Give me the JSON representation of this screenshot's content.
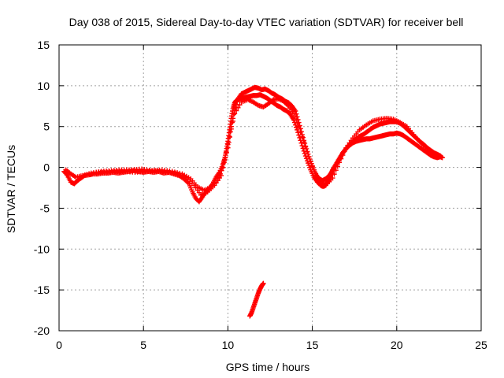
{
  "chart_data": {
    "type": "scatter",
    "title": "Day 038 of 2015, Sidereal Day-to-day VTEC variation (SDTVAR) for receiver bell",
    "xlabel": "GPS time / hours",
    "ylabel": "SDTVAR / TECUs",
    "xlim": [
      0,
      25
    ],
    "ylim": [
      -20,
      15
    ],
    "xticks": [
      0,
      5,
      10,
      15,
      20,
      25
    ],
    "yticks": [
      -20,
      -15,
      -10,
      -5,
      0,
      5,
      10,
      15
    ],
    "grid": true,
    "marker": "plus",
    "color": "#ff0000",
    "series": [
      {
        "name": "main-trace-a",
        "x": [
          0.3,
          0.5,
          0.7,
          0.9,
          1.1,
          1.3,
          1.5,
          1.8,
          2.0,
          2.3,
          2.6,
          2.9,
          3.2,
          3.5,
          3.8,
          4.1,
          4.4,
          4.7,
          5.0,
          5.3,
          5.6,
          5.9,
          6.2,
          6.5,
          6.8,
          7.1,
          7.4,
          7.7,
          7.9,
          8.1,
          8.3,
          8.5,
          8.7,
          8.9,
          9.1,
          9.3,
          9.5,
          9.7,
          9.8,
          9.9,
          10.0,
          10.1,
          10.2,
          10.3,
          10.4,
          10.5,
          10.7,
          10.9,
          11.1,
          11.3,
          11.5,
          11.7,
          11.9,
          12.1,
          12.3,
          12.5,
          12.7,
          12.9,
          13.1,
          13.3,
          13.5,
          13.7,
          13.9,
          14.1,
          14.3,
          14.5,
          14.7,
          14.9,
          15.1,
          15.3,
          15.5,
          15.6,
          15.7,
          15.8,
          15.9,
          16.0,
          16.1,
          16.2,
          16.4,
          16.6,
          16.8,
          17.0,
          17.2,
          17.4,
          17.6,
          17.8,
          18.0,
          18.2,
          18.4,
          18.6,
          18.8,
          19.0,
          19.2,
          19.4,
          19.6,
          19.8,
          20.0,
          20.2,
          20.4,
          20.6,
          20.8,
          21.0,
          21.2,
          21.4,
          21.6,
          21.8,
          22.0,
          22.2,
          22.4,
          22.6,
          22.7
        ],
        "y": [
          -0.5,
          -1.0,
          -1.8,
          -2.0,
          -1.6,
          -1.3,
          -1.0,
          -0.9,
          -0.8,
          -0.8,
          -0.7,
          -0.7,
          -0.6,
          -0.7,
          -0.6,
          -0.5,
          -0.4,
          -0.5,
          -0.6,
          -0.5,
          -0.6,
          -0.5,
          -0.7,
          -0.6,
          -0.8,
          -1.0,
          -1.4,
          -2.0,
          -3.0,
          -3.8,
          -4.2,
          -3.6,
          -3.0,
          -2.6,
          -2.0,
          -1.2,
          -0.6,
          0.3,
          1.0,
          2.0,
          3.2,
          4.6,
          6.0,
          7.2,
          7.9,
          8.2,
          8.4,
          8.5,
          8.6,
          8.7,
          8.8,
          8.8,
          8.9,
          8.7,
          8.5,
          8.2,
          7.9,
          7.6,
          7.4,
          7.1,
          6.9,
          6.5,
          5.8,
          4.6,
          3.3,
          2.0,
          0.8,
          -0.3,
          -1.2,
          -1.8,
          -2.2,
          -2.3,
          -2.3,
          -2.1,
          -1.8,
          -1.4,
          -0.9,
          -0.3,
          0.4,
          1.1,
          1.8,
          2.3,
          2.7,
          3.0,
          3.2,
          3.3,
          3.4,
          3.5,
          3.5,
          3.6,
          3.7,
          3.8,
          3.9,
          4.0,
          4.1,
          4.1,
          4.2,
          4.1,
          3.9,
          3.6,
          3.3,
          3.0,
          2.7,
          2.4,
          2.1,
          1.8,
          1.5,
          1.3,
          1.2,
          1.3,
          1.2
        ]
      },
      {
        "name": "main-trace-b",
        "x": [
          0.4,
          0.7,
          1.0,
          1.4,
          1.9,
          2.5,
          3.1,
          3.7,
          4.3,
          4.9,
          5.5,
          6.1,
          6.7,
          7.3,
          7.8,
          8.2,
          8.6,
          9.0,
          9.4,
          9.7,
          10.0,
          10.2,
          10.4,
          10.6,
          10.8,
          11.0,
          11.2,
          11.4,
          11.6,
          11.8,
          12.0,
          12.2,
          12.4,
          12.6,
          12.8,
          13.0,
          13.2,
          13.4,
          13.6,
          13.8,
          14.0,
          14.2,
          14.4,
          14.6,
          14.8,
          15.0,
          15.2,
          15.4,
          15.6,
          15.8,
          16.0,
          16.2,
          16.4,
          16.6,
          16.8,
          17.0,
          17.2,
          17.4,
          17.6,
          17.8,
          18.0,
          18.2,
          18.4,
          18.6,
          18.8,
          19.0,
          19.2,
          19.4,
          19.6,
          19.8,
          20.0,
          20.2,
          20.4,
          20.6,
          20.8,
          21.0,
          21.2,
          21.4,
          21.6,
          21.8,
          22.0,
          22.2,
          22.4,
          22.6
        ],
        "y": [
          -0.3,
          -0.8,
          -1.2,
          -1.0,
          -0.7,
          -0.5,
          -0.4,
          -0.3,
          -0.3,
          -0.2,
          -0.4,
          -0.3,
          -0.5,
          -0.8,
          -1.4,
          -2.4,
          -2.8,
          -2.4,
          -1.6,
          0.0,
          2.4,
          5.0,
          7.0,
          8.4,
          9.0,
          9.2,
          9.4,
          9.6,
          9.8,
          9.7,
          9.5,
          9.6,
          9.4,
          9.1,
          8.9,
          8.6,
          8.4,
          8.1,
          7.9,
          7.5,
          6.9,
          5.5,
          4.0,
          2.6,
          1.3,
          0.2,
          -0.8,
          -1.4,
          -1.6,
          -1.4,
          -1.0,
          -0.4,
          0.3,
          1.0,
          1.7,
          2.3,
          2.8,
          3.2,
          3.5,
          3.8,
          4.0,
          4.3,
          4.6,
          4.9,
          5.1,
          5.3,
          5.4,
          5.5,
          5.6,
          5.6,
          5.6,
          5.4,
          5.1,
          4.7,
          4.3,
          3.9,
          3.5,
          3.1,
          2.8,
          2.4,
          2.1,
          1.8,
          1.6,
          1.4
        ]
      },
      {
        "name": "main-trace-c",
        "x": [
          2.2,
          2.7,
          3.3,
          3.9,
          4.5,
          5.1,
          5.7,
          6.3,
          6.9,
          7.5,
          8.0,
          8.4,
          8.8,
          9.2,
          9.6,
          10.0,
          10.4,
          10.8,
          11.2,
          11.5,
          11.8,
          12.1,
          12.4,
          12.7,
          13.0,
          13.3,
          13.6,
          13.9,
          14.2,
          14.6,
          15.0,
          15.4,
          15.8,
          16.2,
          16.6,
          17.0,
          17.4,
          17.8,
          18.2,
          18.6,
          19.0,
          19.4,
          19.8,
          20.2,
          20.6,
          21.0,
          21.4,
          21.8,
          22.2,
          22.6
        ],
        "y": [
          -0.6,
          -0.6,
          -0.5,
          -0.5,
          -0.6,
          -0.5,
          -0.4,
          -0.6,
          -0.7,
          -1.2,
          -2.2,
          -3.4,
          -3.0,
          -2.2,
          -1.0,
          2.8,
          6.6,
          8.0,
          8.3,
          8.0,
          7.6,
          7.4,
          7.8,
          8.3,
          8.4,
          8.1,
          7.5,
          6.6,
          5.0,
          2.5,
          0.1,
          -1.6,
          -2.2,
          -1.3,
          0.6,
          2.4,
          3.6,
          4.6,
          5.2,
          5.7,
          5.9,
          6.0,
          5.9,
          5.5,
          5.0,
          4.0,
          3.1,
          2.3,
          1.7,
          1.3
        ]
      },
      {
        "name": "low-segment",
        "x": [
          11.3,
          11.4,
          11.5,
          11.6,
          11.7,
          11.8,
          11.9,
          12.0,
          12.1
        ],
        "y": [
          -18.2,
          -17.8,
          -17.2,
          -16.6,
          -16.0,
          -15.4,
          -14.9,
          -14.5,
          -14.2
        ]
      }
    ]
  }
}
